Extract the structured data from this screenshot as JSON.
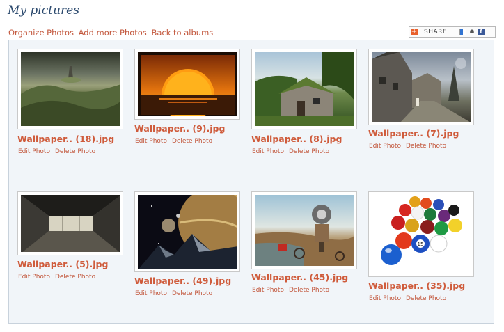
{
  "page": {
    "title": "My pictures"
  },
  "links": {
    "organize": "Organize Photos",
    "add": "Add more Photos",
    "back": "Back to albums"
  },
  "share": {
    "label": "SHARE"
  },
  "actions": {
    "edit": "Edit Photo",
    "delete": "Delete Photo"
  },
  "photos": [
    {
      "name": "Wallpaper.. (18).jpg",
      "scene": "green-valley"
    },
    {
      "name": "Wallpaper.. (9).jpg",
      "scene": "orange-sunset"
    },
    {
      "name": "Wallpaper.. (8).jpg",
      "scene": "stone-cottage"
    },
    {
      "name": "Wallpaper.. (7).jpg",
      "scene": "medieval-street"
    },
    {
      "name": "Wallpaper.. (5).jpg",
      "scene": "warehouse-interior"
    },
    {
      "name": "Wallpaper.. (49).jpg",
      "scene": "space-planets"
    },
    {
      "name": "Wallpaper.. (45).jpg",
      "scene": "surreal-robots"
    },
    {
      "name": "Wallpaper.. (35).jpg",
      "scene": "billiard-balls"
    }
  ]
}
